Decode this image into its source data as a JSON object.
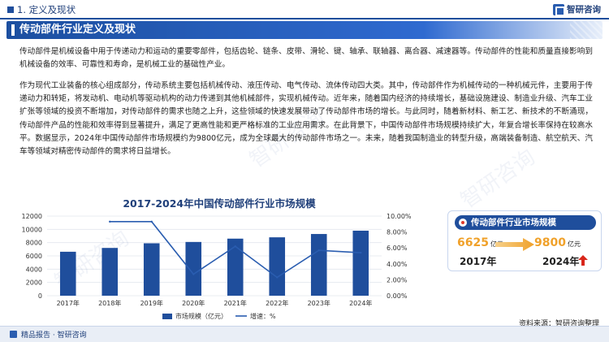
{
  "header": {
    "breadcrumb": "1. 定义及现状",
    "logo_text": "智研咨询"
  },
  "section": {
    "title": "传动部件行业定义及现状"
  },
  "paragraphs": {
    "p1": "传动部件是机械设备中用于传递动力和运动的重要零部件，包括齿轮、链条、皮带、滑轮、键、轴承、联轴器、离合器、减速器等。传动部件的性能和质量直接影响到机械设备的效率、可靠性和寿命，是机械工业的基础性产业。",
    "p2": "作为现代工业装备的核心组成部分，传动系统主要包括机械传动、液压传动、电气传动、流体传动四大类。其中，传动部件作为机械传动的一种机械元件，主要用于传递动力和转矩，将发动机、电动机等驱动机构的动力传递到其他机械部件，实现机械传动。近年来，随着国内经济的持续增长，基础设施建设、制造业升级、汽车工业扩张等领域的投资不断增加，对传动部件的需求也随之上升，这些领域的快速发展带动了传动部件市场的增长。与此同时，随着新材料、新工艺、新技术的不断涌现，传动部件产品的性能和效率得到显著提升，满足了更高性能和更严格标准的工业应用需求。在此背景下，中国传动部件市场规模持续扩大，年复合增长率保持在较高水平。数据显示，2024年中国传动部件市场规模约为9800亿元，成为全球最大的传动部件市场之一。未来，随着我国制造业的转型升级，高端装备制造、航空航天、汽车等领域对精密传动部件的需求将日益增长。"
  },
  "chart_data": {
    "type": "bar",
    "title": "2017-2024年中国传动部件行业市场规模",
    "categories": [
      "2017年",
      "2018年",
      "2019年",
      "2020年",
      "2021年",
      "2022年",
      "2023年",
      "2024年"
    ],
    "series": [
      {
        "name": "市场规模（亿元）",
        "type": "bar",
        "axis": "left",
        "values": [
          6625,
          7200,
          7900,
          8100,
          8600,
          8800,
          9300,
          9800
        ]
      },
      {
        "name": "增速：%",
        "type": "line",
        "axis": "right",
        "values": [
          null,
          9.3,
          9.3,
          2.7,
          6.2,
          2.3,
          5.7,
          5.4
        ]
      }
    ],
    "y_left": {
      "min": 0,
      "max": 12000,
      "ticks": [
        "0",
        "2000",
        "4000",
        "6000",
        "8000",
        "10000",
        "12000"
      ]
    },
    "y_right": {
      "min": 0,
      "max": 10,
      "ticks": [
        "0.00%",
        "2.00%",
        "4.00%",
        "6.00%",
        "8.00%",
        "10.00%"
      ]
    },
    "legend_placement": "bottom",
    "colors": {
      "bar": "#1f4e9c",
      "line": "#2a5db0"
    }
  },
  "card": {
    "title": "传动部件行业市场规模",
    "left_value": "6625",
    "left_unit": "亿元",
    "left_year": "2017年",
    "right_value": "9800",
    "right_unit": "亿元",
    "right_year": "2024年",
    "value_color": "#f0a12a",
    "up_arrow_color": "#d8261a"
  },
  "footer": {
    "left_text": "精品报告 · 智研咨询",
    "source": "资料来源：智研咨询整理"
  }
}
